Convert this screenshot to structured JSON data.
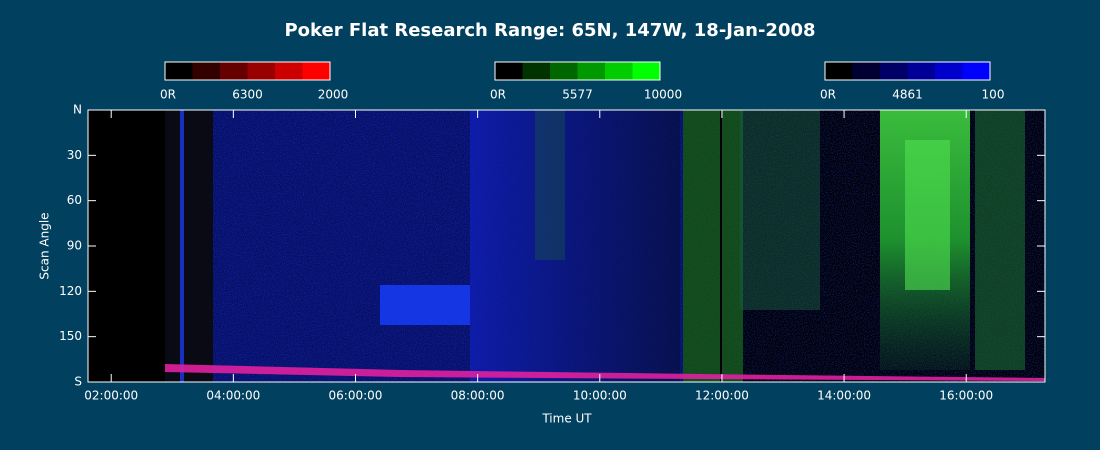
{
  "chart_data": {
    "type": "keogram",
    "title": "Poker Flat Research Range: 65N, 147W, 18-Jan-2008",
    "x_label": "Time UT",
    "y_label": "Scan Angle",
    "xlim": [
      1.62,
      17.29
    ],
    "xticks": [
      {
        "value": 2,
        "label": "02:00:00"
      },
      {
        "value": 4,
        "label": "04:00:00"
      },
      {
        "value": 6,
        "label": "06:00:00"
      },
      {
        "value": 8,
        "label": "08:00:00"
      },
      {
        "value": 10,
        "label": "10:00:00"
      },
      {
        "value": 12,
        "label": "12:00:00"
      },
      {
        "value": 14,
        "label": "14:00:00"
      },
      {
        "value": 16,
        "label": "16:00:00"
      }
    ],
    "ylim": [
      0,
      180
    ],
    "yticks": [
      {
        "value": 0,
        "label": "N"
      },
      30,
      60,
      90,
      120,
      150,
      {
        "value": 180,
        "label": "S"
      }
    ],
    "colorbars": [
      {
        "min_label": "0R",
        "name": "6300",
        "max": 2000,
        "colors": [
          "#000000",
          "#330000",
          "#660000",
          "#990000",
          "#cc0000",
          "#ff0000"
        ]
      },
      {
        "min_label": "0R",
        "name": "5577",
        "max": 10000,
        "colors": [
          "#000000",
          "#003300",
          "#006600",
          "#009900",
          "#00cc00",
          "#00ff00"
        ]
      },
      {
        "min_label": "0R",
        "name": "4861",
        "max": 100,
        "colors": [
          "#000000",
          "#000033",
          "#000066",
          "#000099",
          "#0000cc",
          "#0000ff"
        ]
      }
    ]
  }
}
